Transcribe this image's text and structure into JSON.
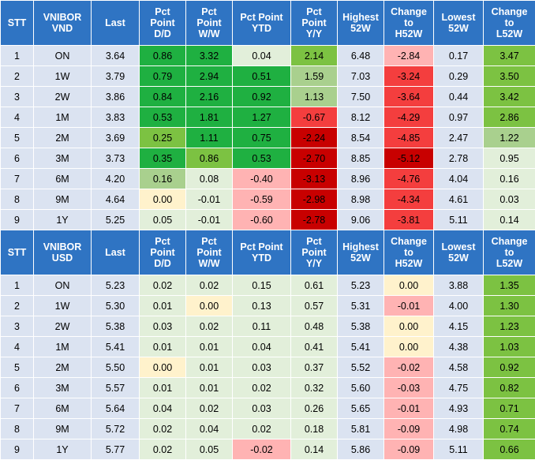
{
  "headers_vnd": [
    "STT",
    "VNIBOR\nVND",
    "Last",
    "Pct\nPoint\nD/D",
    "Pct\nPoint\nW/W",
    "Pct Point\nYTD",
    "Pct\nPoint\nY/Y",
    "Highest\n52W",
    "Change\nto\nH52W",
    "Lowest\n52W",
    "Change\nto\nL52W"
  ],
  "headers_usd": [
    "STT",
    "VNIBOR\nUSD",
    "Last",
    "Pct\nPoint\nD/D",
    "Pct\nPoint\nW/W",
    "Pct Point\nYTD",
    "Pct\nPoint\nY/Y",
    "Highest\n52W",
    "Change\nto\nH52W",
    "Lowest\n52W",
    "Change\nto\nL52W"
  ],
  "rows_vnd": [
    [
      "1",
      "ON",
      "3.64",
      "0.86",
      "3.32",
      "0.04",
      "2.14",
      "6.48",
      "-2.84",
      "0.17",
      "3.47"
    ],
    [
      "2",
      "1W",
      "3.79",
      "0.79",
      "2.94",
      "0.51",
      "1.59",
      "7.03",
      "-3.24",
      "0.29",
      "3.50"
    ],
    [
      "3",
      "2W",
      "3.86",
      "0.84",
      "2.16",
      "0.92",
      "1.13",
      "7.50",
      "-3.64",
      "0.44",
      "3.42"
    ],
    [
      "4",
      "1M",
      "3.83",
      "0.53",
      "1.81",
      "1.27",
      "-0.67",
      "8.12",
      "-4.29",
      "0.97",
      "2.86"
    ],
    [
      "5",
      "2M",
      "3.69",
      "0.25",
      "1.11",
      "0.75",
      "-2.24",
      "8.54",
      "-4.85",
      "2.47",
      "1.22"
    ],
    [
      "6",
      "3M",
      "3.73",
      "0.35",
      "0.86",
      "0.53",
      "-2.70",
      "8.85",
      "-5.12",
      "2.78",
      "0.95"
    ],
    [
      "7",
      "6M",
      "4.20",
      "0.16",
      "0.08",
      "-0.40",
      "-3.13",
      "8.96",
      "-4.76",
      "4.04",
      "0.16"
    ],
    [
      "8",
      "9M",
      "4.64",
      "0.00",
      "-0.01",
      "-0.59",
      "-2.98",
      "8.98",
      "-4.34",
      "4.61",
      "0.03"
    ],
    [
      "9",
      "1Y",
      "5.25",
      "0.05",
      "-0.01",
      "-0.60",
      "-2.78",
      "9.06",
      "-3.81",
      "5.11",
      "0.14"
    ]
  ],
  "rows_usd": [
    [
      "1",
      "ON",
      "5.23",
      "0.02",
      "0.02",
      "0.15",
      "0.61",
      "5.23",
      "0.00",
      "3.88",
      "1.35"
    ],
    [
      "2",
      "1W",
      "5.30",
      "0.01",
      "0.00",
      "0.13",
      "0.57",
      "5.31",
      "-0.01",
      "4.00",
      "1.30"
    ],
    [
      "3",
      "2W",
      "5.38",
      "0.03",
      "0.02",
      "0.11",
      "0.48",
      "5.38",
      "0.00",
      "4.15",
      "1.23"
    ],
    [
      "4",
      "1M",
      "5.41",
      "0.01",
      "0.01",
      "0.04",
      "0.41",
      "5.41",
      "0.00",
      "4.38",
      "1.03"
    ],
    [
      "5",
      "2M",
      "5.50",
      "0.00",
      "0.01",
      "0.03",
      "0.37",
      "5.52",
      "-0.02",
      "4.58",
      "0.92"
    ],
    [
      "6",
      "3M",
      "5.57",
      "0.01",
      "0.01",
      "0.02",
      "0.32",
      "5.60",
      "-0.03",
      "4.75",
      "0.82"
    ],
    [
      "7",
      "6M",
      "5.64",
      "0.04",
      "0.02",
      "0.03",
      "0.26",
      "5.65",
      "-0.01",
      "4.93",
      "0.71"
    ],
    [
      "8",
      "9M",
      "5.72",
      "0.02",
      "0.04",
      "0.02",
      "0.18",
      "5.81",
      "-0.09",
      "4.98",
      "0.74"
    ],
    [
      "9",
      "1Y",
      "5.77",
      "0.02",
      "0.05",
      "-0.02",
      "0.14",
      "5.86",
      "-0.09",
      "5.11",
      "0.66"
    ]
  ],
  "colors": {
    "header": "#2f74c3",
    "base": "#dbe3f1",
    "zero": "#fff2cc",
    "pos_weak": "#e2efda",
    "pos_light": "#a9d08e",
    "pos_mid": "#7cc242",
    "pos_strong": "#1fb041",
    "neg_weak": "#ffb3b3",
    "neg_mid": "#f43e3e",
    "neg_strong": "#c80000"
  },
  "cell_colors_vnd": [
    [
      "base",
      "base",
      "base",
      "pos_strong",
      "pos_strong",
      "pos_weak",
      "pos_mid",
      "base",
      "neg_weak",
      "base",
      "pos_mid"
    ],
    [
      "base",
      "base",
      "base",
      "pos_strong",
      "pos_strong",
      "pos_strong",
      "pos_light",
      "base",
      "neg_mid",
      "base",
      "pos_mid"
    ],
    [
      "base",
      "base",
      "base",
      "pos_strong",
      "pos_strong",
      "pos_strong",
      "pos_light",
      "base",
      "neg_mid",
      "base",
      "pos_mid"
    ],
    [
      "base",
      "base",
      "base",
      "pos_strong",
      "pos_strong",
      "pos_strong",
      "neg_mid",
      "base",
      "neg_mid",
      "base",
      "pos_mid"
    ],
    [
      "base",
      "base",
      "base",
      "pos_mid",
      "pos_strong",
      "pos_strong",
      "neg_strong",
      "base",
      "neg_mid",
      "base",
      "pos_light"
    ],
    [
      "base",
      "base",
      "base",
      "pos_strong",
      "pos_mid",
      "pos_strong",
      "neg_strong",
      "base",
      "neg_strong",
      "base",
      "pos_weak"
    ],
    [
      "base",
      "base",
      "base",
      "pos_light",
      "pos_weak",
      "neg_weak",
      "neg_strong",
      "base",
      "neg_mid",
      "base",
      "pos_weak"
    ],
    [
      "base",
      "base",
      "base",
      "zero",
      "pos_weak",
      "neg_weak",
      "neg_strong",
      "base",
      "neg_mid",
      "base",
      "pos_weak"
    ],
    [
      "base",
      "base",
      "base",
      "pos_weak",
      "pos_weak",
      "neg_weak",
      "neg_strong",
      "base",
      "neg_mid",
      "base",
      "pos_weak"
    ]
  ],
  "cell_colors_usd": [
    [
      "base",
      "base",
      "base",
      "pos_weak",
      "pos_weak",
      "pos_weak",
      "pos_weak",
      "base",
      "zero",
      "base",
      "pos_mid"
    ],
    [
      "base",
      "base",
      "base",
      "pos_weak",
      "zero",
      "pos_weak",
      "pos_weak",
      "base",
      "neg_weak",
      "base",
      "pos_mid"
    ],
    [
      "base",
      "base",
      "base",
      "pos_weak",
      "pos_weak",
      "pos_weak",
      "pos_weak",
      "base",
      "zero",
      "base",
      "pos_mid"
    ],
    [
      "base",
      "base",
      "base",
      "pos_weak",
      "pos_weak",
      "pos_weak",
      "pos_weak",
      "base",
      "zero",
      "base",
      "pos_mid"
    ],
    [
      "base",
      "base",
      "base",
      "zero",
      "pos_weak",
      "pos_weak",
      "pos_weak",
      "base",
      "neg_weak",
      "base",
      "pos_mid"
    ],
    [
      "base",
      "base",
      "base",
      "pos_weak",
      "pos_weak",
      "pos_weak",
      "pos_weak",
      "base",
      "neg_weak",
      "base",
      "pos_mid"
    ],
    [
      "base",
      "base",
      "base",
      "pos_weak",
      "pos_weak",
      "pos_weak",
      "pos_weak",
      "base",
      "neg_weak",
      "base",
      "pos_mid"
    ],
    [
      "base",
      "base",
      "base",
      "pos_weak",
      "pos_weak",
      "pos_weak",
      "pos_weak",
      "base",
      "neg_weak",
      "base",
      "pos_mid"
    ],
    [
      "base",
      "base",
      "base",
      "pos_weak",
      "pos_weak",
      "neg_weak",
      "pos_weak",
      "base",
      "neg_weak",
      "base",
      "pos_mid"
    ]
  ]
}
